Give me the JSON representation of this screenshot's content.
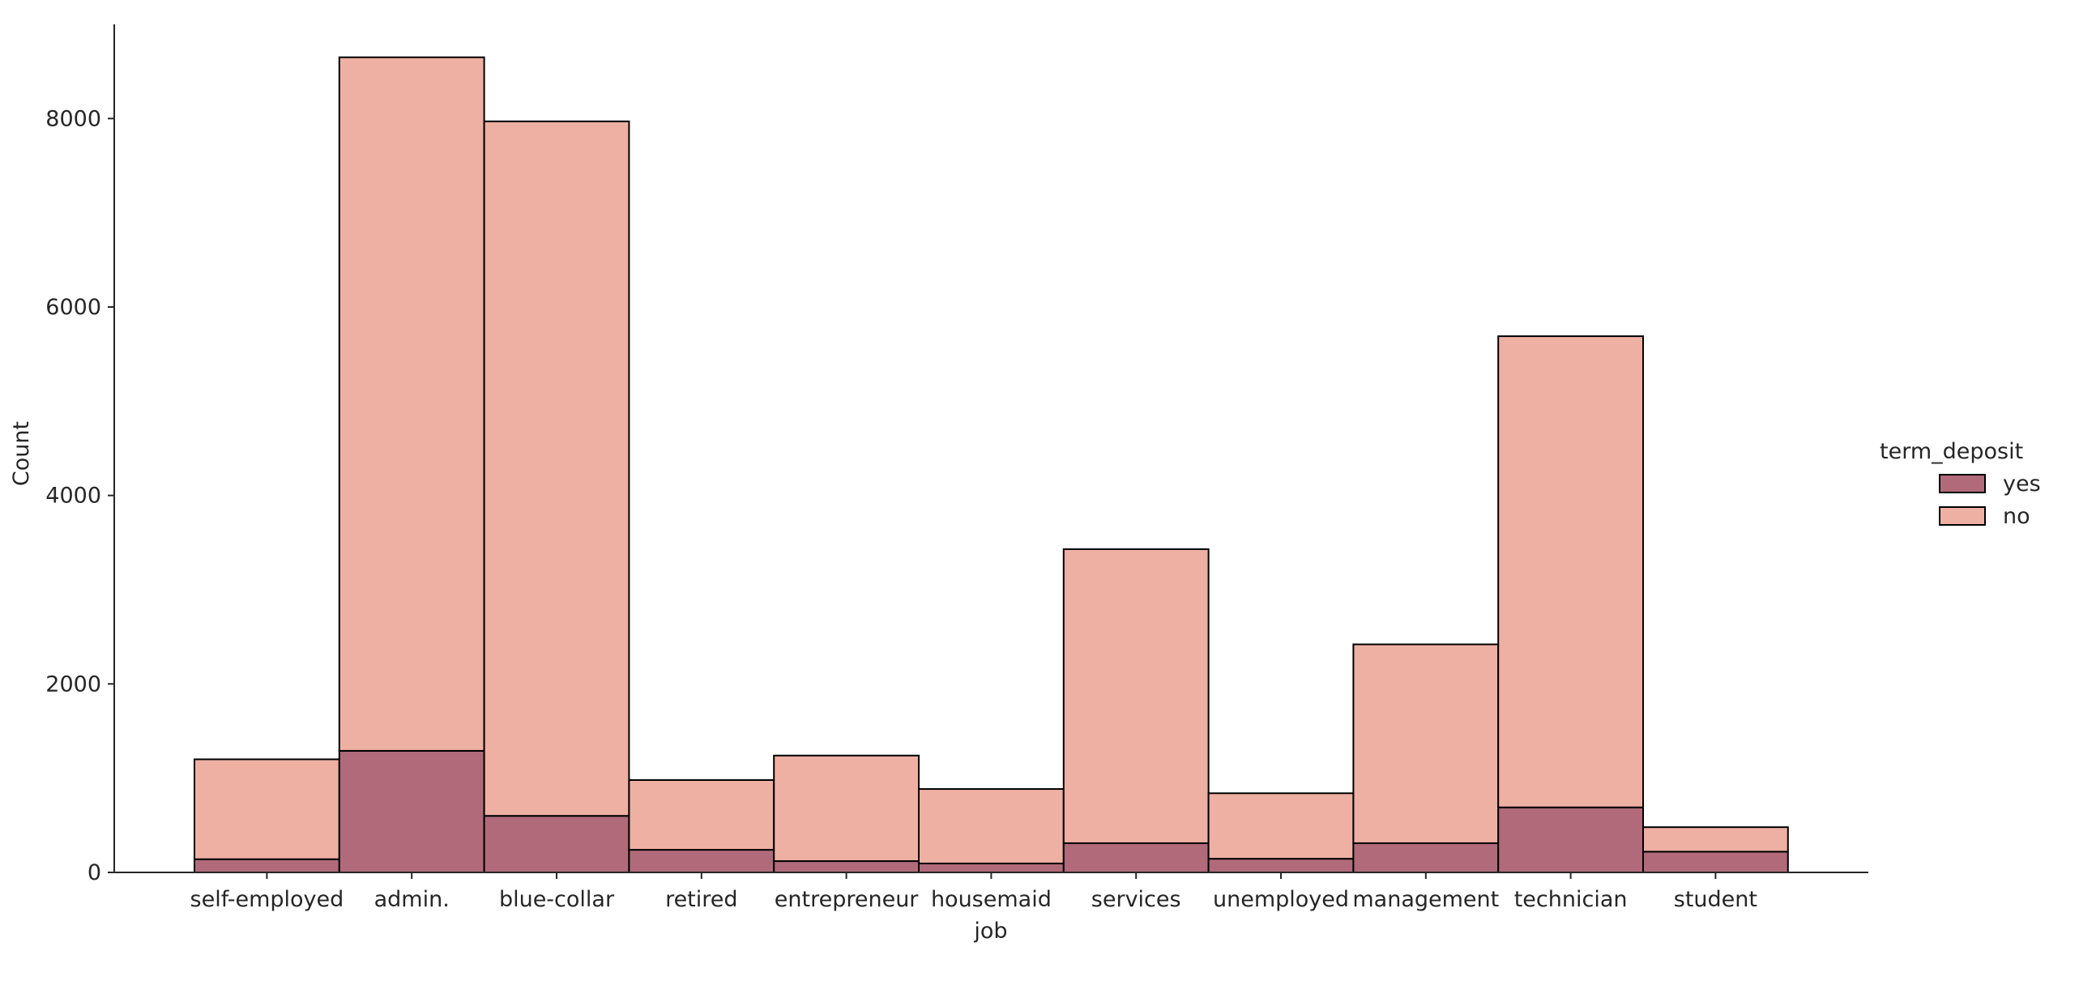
{
  "chart_data": {
    "type": "bar",
    "stacked": true,
    "categories": [
      "self-employed",
      "admin.",
      "blue-collar",
      "retired",
      "entrepreneur",
      "housemaid",
      "services",
      "unemployed",
      "management",
      "technician",
      "student"
    ],
    "series": [
      {
        "name": "yes",
        "color": "#b06a7a",
        "values": [
          140,
          1290,
          600,
          240,
          120,
          95,
          310,
          145,
          310,
          690,
          220
        ]
      },
      {
        "name": "no",
        "color": "#eeb0a2",
        "values": [
          1060,
          7360,
          7370,
          740,
          1120,
          790,
          3120,
          695,
          2110,
          5000,
          260
        ]
      }
    ],
    "xlabel": "job",
    "ylabel": "Count",
    "ylim": [
      0,
      9000
    ],
    "yticks": [
      0,
      2000,
      4000,
      6000,
      8000
    ],
    "legend": {
      "title": "term_deposit",
      "placement": "right"
    },
    "grid": false
  }
}
